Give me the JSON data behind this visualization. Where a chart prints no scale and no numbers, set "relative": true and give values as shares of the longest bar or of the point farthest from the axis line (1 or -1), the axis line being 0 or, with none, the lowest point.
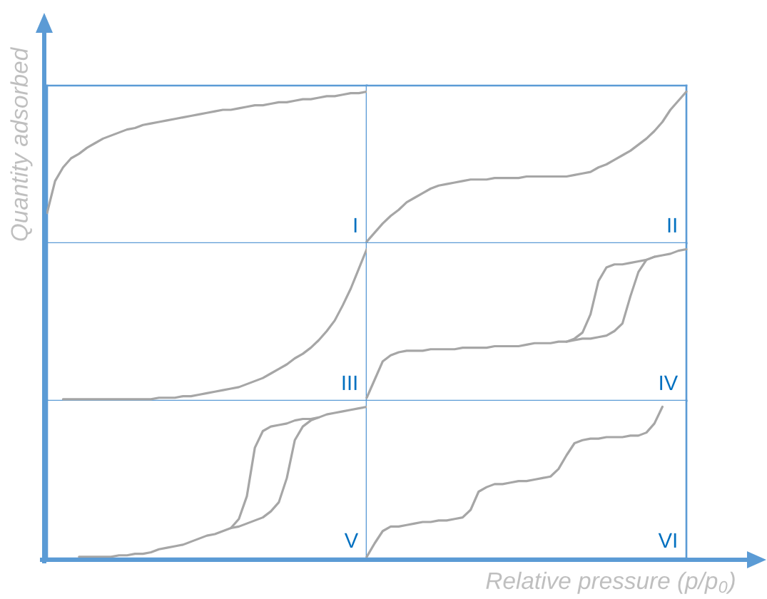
{
  "chart_data": [
    {
      "type": "line",
      "ylabel": "Quantity adsorbed",
      "annotations": [
        "I"
      ],
      "relative": true,
      "categories": [
        null,
        null,
        null,
        null,
        null,
        null,
        null,
        null,
        null,
        null,
        null,
        null,
        null,
        null,
        null,
        null,
        null,
        null,
        null,
        null,
        null,
        null,
        null,
        null,
        null,
        null,
        null,
        null,
        null,
        null,
        null,
        null,
        null,
        null,
        null,
        null,
        null,
        null,
        null,
        null,
        null
      ],
      "series": [
        {
          "color": "#a6a6a6",
          "values": [
            0.2,
            0.41,
            0.5,
            0.56,
            0.59,
            0.63,
            0.66,
            0.69,
            0.71,
            0.73,
            0.75,
            0.76,
            0.78,
            0.79,
            0.8,
            0.81,
            0.82,
            0.83,
            0.84,
            0.85,
            0.86,
            0.87,
            0.88,
            0.88,
            0.89,
            0.9,
            0.91,
            0.91,
            0.92,
            0.93,
            0.93,
            0.94,
            0.95,
            0.95,
            0.96,
            0.97,
            0.97,
            0.98,
            0.99,
            0.99,
            1.0
          ]
        }
      ]
    },
    {
      "type": "line",
      "annotations": [
        "II"
      ],
      "relative": true,
      "categories": [
        null,
        null,
        null,
        null,
        null,
        null,
        null,
        null,
        null,
        null,
        null,
        null,
        null,
        null,
        null,
        null,
        null,
        null,
        null,
        null,
        null,
        null,
        null,
        null,
        null,
        null,
        null,
        null,
        null,
        null,
        null,
        null,
        null,
        null,
        null,
        null,
        null,
        null,
        null,
        null,
        null
      ],
      "series": [
        {
          "color": "#a6a6a6",
          "values": [
            0.01,
            0.07,
            0.13,
            0.18,
            0.22,
            0.27,
            0.3,
            0.33,
            0.36,
            0.38,
            0.39,
            0.4,
            0.41,
            0.42,
            0.42,
            0.42,
            0.43,
            0.43,
            0.43,
            0.43,
            0.44,
            0.44,
            0.44,
            0.44,
            0.44,
            0.44,
            0.45,
            0.46,
            0.47,
            0.5,
            0.52,
            0.55,
            0.58,
            0.61,
            0.65,
            0.69,
            0.74,
            0.8,
            0.88,
            0.94,
            1.0
          ]
        }
      ]
    },
    {
      "type": "line",
      "annotations": [
        "III"
      ],
      "relative": true,
      "categories": [
        null,
        null,
        null,
        null,
        null,
        null,
        null,
        null,
        null,
        null,
        null,
        null,
        null,
        null,
        null,
        null,
        null,
        null,
        null,
        null,
        null,
        null,
        null,
        null,
        null,
        null,
        null,
        null,
        null,
        null,
        null,
        null,
        null,
        null,
        null,
        null,
        null,
        null,
        null,
        null,
        null
      ],
      "series": [
        {
          "color": "#a6a6a6",
          "values": [
            null,
            null,
            0.01,
            0.01,
            0.01,
            0.01,
            0.01,
            0.01,
            0.01,
            0.01,
            0.01,
            0.01,
            0.01,
            0.01,
            0.02,
            0.02,
            0.02,
            0.03,
            0.03,
            0.04,
            0.05,
            0.06,
            0.07,
            0.08,
            0.09,
            0.11,
            0.13,
            0.15,
            0.18,
            0.21,
            0.24,
            0.28,
            0.31,
            0.35,
            0.4,
            0.46,
            0.53,
            0.63,
            0.74,
            0.87,
            1.0
          ]
        }
      ]
    },
    {
      "type": "line",
      "annotations": [
        "IV"
      ],
      "relative": true,
      "categories": [
        null,
        null,
        null,
        null,
        null,
        null,
        null,
        null,
        null,
        null,
        null,
        null,
        null,
        null,
        null,
        null,
        null,
        null,
        null,
        null,
        null,
        null,
        null,
        null,
        null,
        null,
        null,
        null,
        null,
        null,
        null,
        null,
        null,
        null,
        null,
        null,
        null,
        null,
        null,
        null,
        null
      ],
      "series": [
        {
          "color": "#a6a6a6",
          "values": [
            0.02,
            0.14,
            0.26,
            0.3,
            0.32,
            0.33,
            0.33,
            0.33,
            0.34,
            0.34,
            0.34,
            0.34,
            0.35,
            0.35,
            0.35,
            0.35,
            0.36,
            0.36,
            0.36,
            0.36,
            0.37,
            0.38,
            0.38,
            0.38,
            0.39,
            0.39,
            0.4,
            0.41,
            0.41,
            0.42,
            0.43,
            0.46,
            0.51,
            0.69,
            0.85,
            0.93,
            0.95,
            0.96,
            0.97,
            0.99,
            1.0
          ]
        },
        {
          "color": "#a6a6a6",
          "values": [
            null,
            null,
            null,
            null,
            null,
            null,
            null,
            null,
            null,
            null,
            null,
            null,
            null,
            null,
            null,
            null,
            null,
            null,
            null,
            null,
            null,
            null,
            null,
            null,
            null,
            0.39,
            0.41,
            0.45,
            0.57,
            0.79,
            0.88,
            0.9,
            0.9,
            0.91,
            0.92,
            0.93,
            0.95,
            null,
            null,
            null,
            null
          ]
        }
      ]
    },
    {
      "type": "line",
      "annotations": [
        "V"
      ],
      "relative": true,
      "categories": [
        null,
        null,
        null,
        null,
        null,
        null,
        null,
        null,
        null,
        null,
        null,
        null,
        null,
        null,
        null,
        null,
        null,
        null,
        null,
        null,
        null,
        null,
        null,
        null,
        null,
        null,
        null,
        null,
        null,
        null,
        null,
        null,
        null,
        null,
        null,
        null,
        null,
        null,
        null,
        null,
        null
      ],
      "series": [
        {
          "color": "#a6a6a6",
          "values": [
            null,
            null,
            null,
            null,
            0.01,
            0.01,
            0.01,
            0.01,
            0.01,
            0.02,
            0.02,
            0.03,
            0.03,
            0.04,
            0.06,
            0.07,
            0.08,
            0.09,
            0.11,
            0.13,
            0.15,
            0.16,
            0.18,
            0.2,
            0.21,
            0.23,
            0.25,
            0.27,
            0.31,
            0.37,
            0.53,
            0.78,
            0.87,
            0.91,
            0.93,
            0.95,
            0.96,
            0.97,
            0.98,
            0.99,
            1.0
          ]
        },
        {
          "color": "#a6a6a6",
          "values": [
            null,
            null,
            null,
            null,
            null,
            null,
            null,
            null,
            null,
            null,
            null,
            null,
            null,
            null,
            null,
            null,
            null,
            null,
            null,
            null,
            null,
            null,
            null,
            0.2,
            0.26,
            0.41,
            0.73,
            0.84,
            0.87,
            0.88,
            0.89,
            0.91,
            0.92,
            0.92,
            0.93,
            null,
            null,
            null,
            null,
            null,
            null
          ]
        }
      ]
    },
    {
      "type": "line",
      "xlabel": "Relative pressure (p/p$_{0}$)",
      "annotations": [
        "VI"
      ],
      "relative": true,
      "categories": [
        null,
        null,
        null,
        null,
        null,
        null,
        null,
        null,
        null,
        null,
        null,
        null,
        null,
        null,
        null,
        null,
        null,
        null,
        null,
        null,
        null,
        null,
        null,
        null,
        null,
        null,
        null,
        null,
        null,
        null,
        null,
        null,
        null,
        null,
        null,
        null,
        null,
        null,
        null,
        null,
        null
      ],
      "series": [
        {
          "color": "#a6a6a6",
          "values": [
            0.01,
            0.1,
            0.18,
            0.21,
            0.21,
            0.22,
            0.23,
            0.24,
            0.24,
            0.25,
            0.25,
            0.26,
            0.27,
            0.32,
            0.44,
            0.47,
            0.49,
            0.49,
            0.5,
            0.51,
            0.51,
            0.52,
            0.53,
            0.54,
            0.59,
            0.68,
            0.76,
            0.78,
            0.79,
            0.79,
            0.8,
            0.8,
            0.8,
            0.81,
            0.81,
            0.83,
            0.89,
            1.0,
            null,
            null,
            null
          ]
        }
      ]
    }
  ]
}
